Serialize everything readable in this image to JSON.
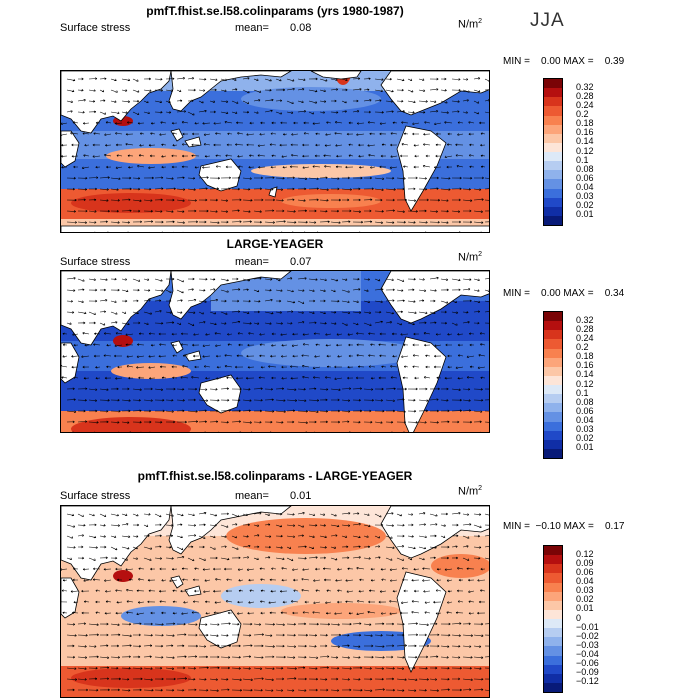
{
  "season": "JJA",
  "panels": [
    {
      "title": "pmfT.fhist.se.l58.colinparams (yrs 1980-1987)",
      "variable": "Surface stress",
      "mean_label": "mean=",
      "mean": "0.08",
      "units": "N/m",
      "units_sup": "2",
      "minmax": "MIN =    0.00 MAX =    0.39",
      "colorbar_labels": [
        "0.32",
        "0.28",
        "0.24",
        "0.2",
        "0.18",
        "0.16",
        "0.14",
        "0.12",
        "0.1",
        "0.08",
        "0.06",
        "0.04",
        "0.03",
        "0.02",
        "0.01"
      ],
      "colorbar_colors": [
        "#7a0406",
        "#b50f0f",
        "#d8341c",
        "#ed5a32",
        "#f8814f",
        "#fca57a",
        "#fcc7a7",
        "#fde5d8",
        "#dde9f7",
        "#b6cdf1",
        "#8fb2ec",
        "#6491e4",
        "#3b6fdc",
        "#2049c8",
        "#102ea6",
        "#081a78"
      ]
    },
    {
      "title": "LARGE-YEAGER",
      "variable": "Surface stress",
      "mean_label": "mean=",
      "mean": "0.07",
      "units": "N/m",
      "units_sup": "2",
      "minmax": "MIN =    0.00 MAX =    0.34",
      "colorbar_labels": [
        "0.32",
        "0.28",
        "0.24",
        "0.2",
        "0.18",
        "0.16",
        "0.14",
        "0.12",
        "0.1",
        "0.08",
        "0.06",
        "0.04",
        "0.03",
        "0.02",
        "0.01"
      ],
      "colorbar_colors": [
        "#7a0406",
        "#b50f0f",
        "#d8341c",
        "#ed5a32",
        "#f8814f",
        "#fca57a",
        "#fcc7a7",
        "#fde5d8",
        "#dde9f7",
        "#b6cdf1",
        "#8fb2ec",
        "#6491e4",
        "#3b6fdc",
        "#2049c8",
        "#102ea6",
        "#081a78"
      ]
    },
    {
      "title": "pmfT.fhist.se.l58.colinparams - LARGE-YEAGER",
      "variable": "Surface stress",
      "mean_label": "mean=",
      "mean": "0.01",
      "units": "N/m",
      "units_sup": "2",
      "minmax": "MIN =  −0.10 MAX =    0.17",
      "colorbar_labels": [
        "0.12",
        "0.09",
        "0.06",
        "0.04",
        "0.03",
        "0.02",
        "0.01",
        "0",
        "−0.01",
        "−0.02",
        "−0.03",
        "−0.04",
        "−0.06",
        "−0.09",
        "−0.12"
      ],
      "colorbar_colors": [
        "#7a0406",
        "#b50f0f",
        "#d8341c",
        "#ed5a32",
        "#f8814f",
        "#fca57a",
        "#fcc7a7",
        "#fde5d8",
        "#dde9f7",
        "#b6cdf1",
        "#8fb2ec",
        "#6491e4",
        "#3b6fdc",
        "#2049c8",
        "#102ea6",
        "#081a78"
      ]
    }
  ]
}
